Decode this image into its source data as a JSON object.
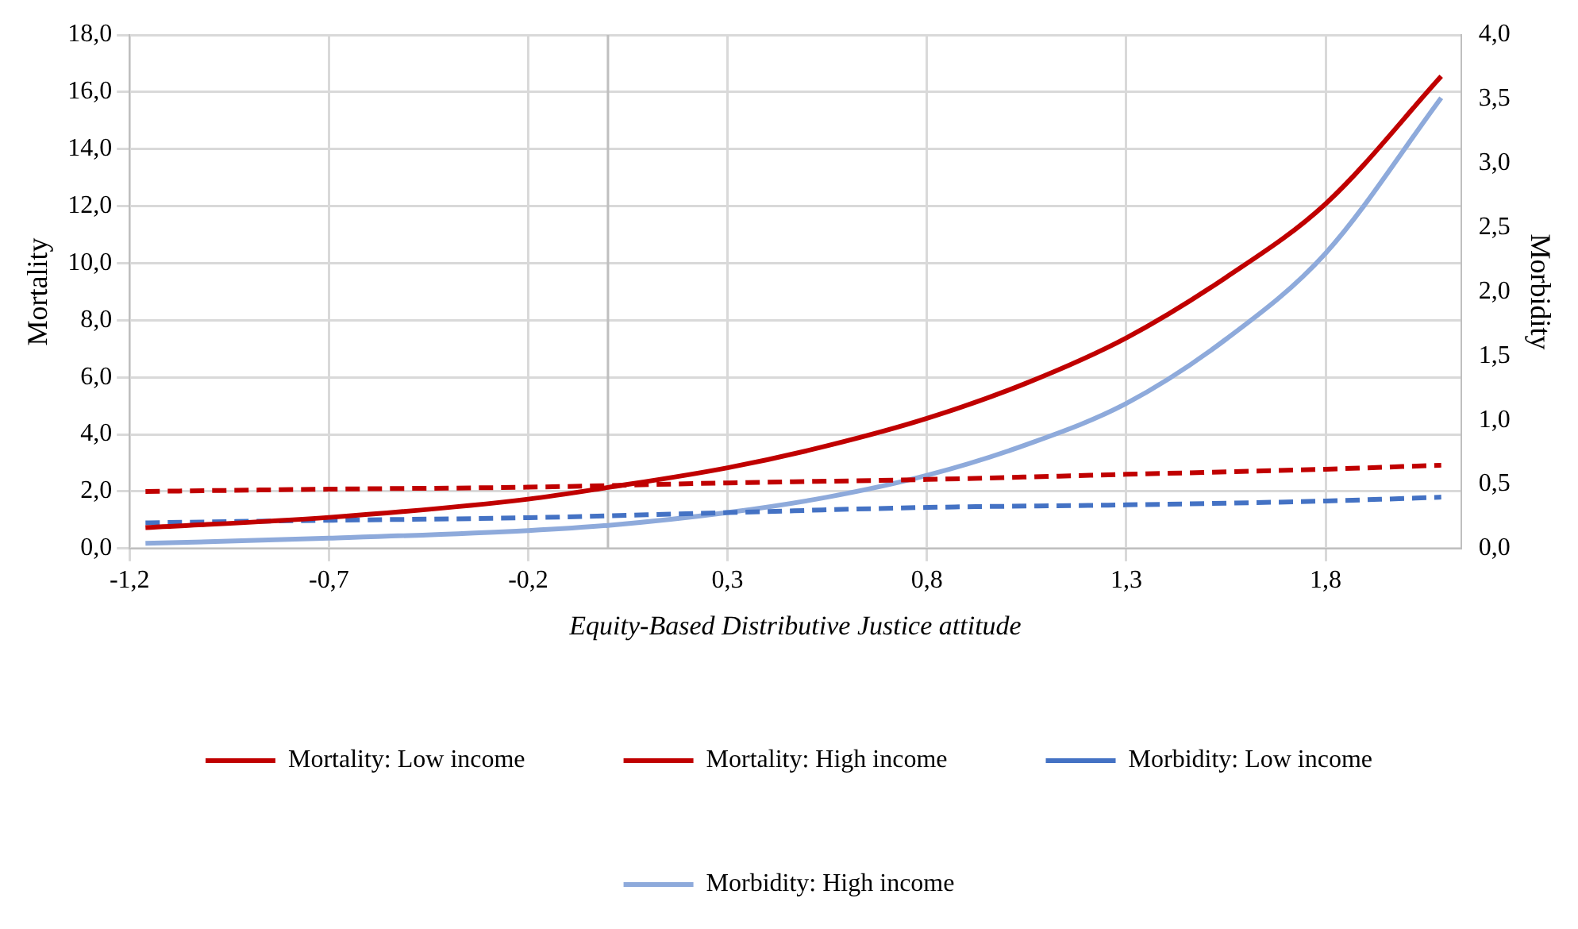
{
  "chart_data": {
    "type": "line",
    "xlabel": "Equity-Based Distributive Justice attitude",
    "ylabel": "Mortality",
    "y2label": "Morbidity",
    "xlim": [
      -1.2,
      2.14
    ],
    "xticks": [
      {
        "value": -1.2,
        "label": "-1,2"
      },
      {
        "value": -0.7,
        "label": "-0,7"
      },
      {
        "value": -0.2,
        "label": "-0,2"
      },
      {
        "value": 0.3,
        "label": "0,3"
      },
      {
        "value": 0.8,
        "label": "0,8"
      },
      {
        "value": 1.3,
        "label": "1,3"
      },
      {
        "value": 1.8,
        "label": "1,8"
      }
    ],
    "ylim": [
      0,
      18
    ],
    "yticks": [
      {
        "value": 0,
        "label": "0,0"
      },
      {
        "value": 2,
        "label": "2,0"
      },
      {
        "value": 4,
        "label": "4,0"
      },
      {
        "value": 6,
        "label": "6,0"
      },
      {
        "value": 8,
        "label": "8,0"
      },
      {
        "value": 10,
        "label": "10,0"
      },
      {
        "value": 12,
        "label": "12,0"
      },
      {
        "value": 14,
        "label": "14,0"
      },
      {
        "value": 16,
        "label": "16,0"
      },
      {
        "value": 18,
        "label": "18,0"
      }
    ],
    "y2lim": [
      0,
      4
    ],
    "y2ticks": [
      {
        "value": 0,
        "label": "0,0"
      },
      {
        "value": 0.5,
        "label": "0,5"
      },
      {
        "value": 1,
        "label": "1,0"
      },
      {
        "value": 1.5,
        "label": "1,5"
      },
      {
        "value": 2,
        "label": "2,0"
      },
      {
        "value": 2.5,
        "label": "2,5"
      },
      {
        "value": 3,
        "label": "3,0"
      },
      {
        "value": 3.5,
        "label": "3,5"
      },
      {
        "value": 4,
        "label": "4,0"
      }
    ],
    "grid": true,
    "legend": "bottom",
    "marker": "none",
    "ref_lines": [
      {
        "axis": "x",
        "value": 0,
        "color": "#bfbfbf"
      }
    ],
    "series": [
      {
        "name": "Mortality: Low income",
        "color": "#c00000",
        "line_style": "dashed",
        "x": [
          -1.16,
          -0.7,
          -0.2,
          0.3,
          0.8,
          1.3,
          1.8,
          2.09
        ],
        "values": [
          2.0,
          2.08,
          2.15,
          2.3,
          2.42,
          2.6,
          2.78,
          2.92
        ]
      },
      {
        "name": "Mortality: High income",
        "color": "#c00000",
        "line_style": "solid",
        "x": [
          -1.16,
          -0.7,
          -0.2,
          0,
          0.3,
          0.55,
          0.8,
          1.05,
          1.3,
          1.55,
          1.8,
          2.09
        ],
        "values": [
          0.73,
          1.09,
          1.73,
          2.14,
          2.83,
          3.6,
          4.56,
          5.8,
          7.38,
          9.5,
          12.08,
          16.55
        ]
      },
      {
        "name": "Morbidity: Low income",
        "color": "#4472c4",
        "line_style": "dashed",
        "axis": "y2",
        "x": [
          -1.16,
          -0.7,
          -0.2,
          0.3,
          0.8,
          1.3,
          1.8,
          2.09
        ],
        "values": [
          0.2,
          0.22,
          0.24,
          0.28,
          0.32,
          0.34,
          0.37,
          0.4
        ]
      },
      {
        "name": "Morbidity: High income",
        "color": "#8eaadb",
        "line_style": "solid",
        "axis": "y2",
        "x": [
          -1.16,
          -0.7,
          -0.2,
          0,
          0.3,
          0.55,
          0.8,
          1.05,
          1.3,
          1.55,
          1.8,
          2.09
        ],
        "values": [
          0.04,
          0.08,
          0.14,
          0.18,
          0.28,
          0.4,
          0.57,
          0.81,
          1.13,
          1.63,
          2.3,
          3.51
        ]
      }
    ]
  }
}
